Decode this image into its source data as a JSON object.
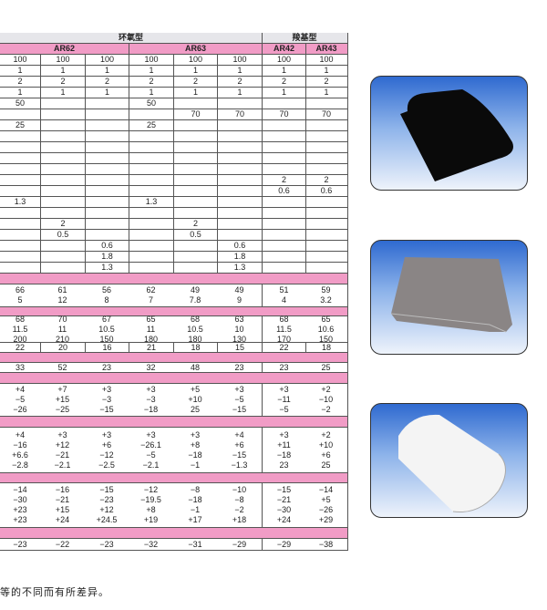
{
  "table": {
    "group_headers": [
      {
        "label": "环氧型",
        "span": 6
      },
      {
        "label": "羧基型",
        "span": 2
      }
    ],
    "model_headers": [
      {
        "label": "AR62",
        "span": 3
      },
      {
        "label": "AR63",
        "span": 3
      },
      {
        "label": "AR42",
        "span": 1
      },
      {
        "label": "AR43",
        "span": 1
      }
    ],
    "rows": [
      {
        "type": "grid",
        "h": 12,
        "cells": [
          "100",
          "100",
          "100",
          "100",
          "100",
          "100",
          "100",
          "100"
        ]
      },
      {
        "type": "grid",
        "h": 12,
        "cells": [
          "1",
          "1",
          "1",
          "1",
          "1",
          "1",
          "1",
          "1"
        ]
      },
      {
        "type": "grid",
        "h": 12,
        "cells": [
          "2",
          "2",
          "2",
          "2",
          "2",
          "2",
          "2",
          "2"
        ]
      },
      {
        "type": "grid",
        "h": 12,
        "cells": [
          "1",
          "1",
          "1",
          "1",
          "1",
          "1",
          "1",
          "1"
        ]
      },
      {
        "type": "grid",
        "h": 12,
        "cells": [
          "50",
          "",
          "",
          "50",
          "",
          "",
          "",
          ""
        ]
      },
      {
        "type": "grid",
        "h": 12,
        "cells": [
          "",
          "",
          "",
          "",
          "70",
          "70",
          "70",
          "70"
        ]
      },
      {
        "type": "grid",
        "h": 12,
        "cells": [
          "25",
          "",
          "",
          "25",
          "",
          "",
          "",
          ""
        ]
      },
      {
        "type": "grid",
        "h": 12,
        "cells": [
          "",
          "",
          "",
          "",
          "",
          "",
          "",
          ""
        ]
      },
      {
        "type": "grid",
        "h": 12,
        "cells": [
          "",
          "",
          "",
          "",
          "",
          "",
          "",
          ""
        ]
      },
      {
        "type": "grid",
        "h": 12,
        "cells": [
          "",
          "",
          "",
          "",
          "",
          "",
          "",
          ""
        ]
      },
      {
        "type": "grid",
        "h": 12,
        "cells": [
          "",
          "",
          "",
          "",
          "",
          "",
          "",
          ""
        ]
      },
      {
        "type": "grid",
        "h": 12,
        "cells": [
          "",
          "",
          "",
          "",
          "",
          "",
          "2",
          "2"
        ]
      },
      {
        "type": "grid",
        "h": 12,
        "cells": [
          "",
          "",
          "",
          "",
          "",
          "",
          "0.6",
          "0.6"
        ]
      },
      {
        "type": "grid",
        "h": 12,
        "cells": [
          "1.3",
          "",
          "",
          "1.3",
          "",
          "",
          "",
          ""
        ]
      },
      {
        "type": "grid",
        "h": 12,
        "cells": [
          "",
          "",
          "",
          "",
          "",
          "",
          "",
          ""
        ]
      },
      {
        "type": "grid",
        "h": 12,
        "cells": [
          "",
          "2",
          "",
          "",
          "2",
          "",
          "",
          ""
        ]
      },
      {
        "type": "grid",
        "h": 12,
        "cells": [
          "",
          "0.5",
          "",
          "",
          "0.5",
          "",
          "",
          ""
        ]
      },
      {
        "type": "grid",
        "h": 12,
        "cells": [
          "",
          "",
          "0.6",
          "",
          "",
          "0.6",
          "",
          ""
        ]
      },
      {
        "type": "grid",
        "h": 12,
        "cells": [
          "",
          "",
          "1.8",
          "",
          "",
          "1.8",
          "",
          ""
        ]
      },
      {
        "type": "grid",
        "h": 12,
        "cells": [
          "",
          "",
          "1.3",
          "",
          "",
          "1.3",
          "",
          ""
        ]
      },
      {
        "type": "pink",
        "h": 12
      },
      {
        "type": "block",
        "h": 25,
        "cells": [
          "66\n5",
          "61\n12",
          "56\n8",
          "62\n7",
          "49\n7.8",
          "49\n9",
          "51\n4",
          "59\n3.2"
        ]
      },
      {
        "type": "pink",
        "h": 10
      },
      {
        "type": "block",
        "h": 29,
        "cells": [
          "68\n11.5\n200",
          "70\n11\n210",
          "67\n10.5\n150",
          "65\n11\n180",
          "68\n10.5\n180",
          "63\n10\n130",
          "68\n11.5\n170",
          "65\n10.6\n150"
        ]
      },
      {
        "type": "grid",
        "h": 11,
        "cells": [
          "22",
          "20",
          "16",
          "21",
          "18",
          "15",
          "22",
          "18"
        ]
      },
      {
        "type": "pink",
        "h": 11
      },
      {
        "type": "block",
        "h": 11,
        "cells": [
          "33",
          "52",
          "23",
          "32",
          "48",
          "23",
          "23",
          "25"
        ]
      },
      {
        "type": "pink",
        "h": 12
      },
      {
        "type": "block",
        "h": 36,
        "cells": [
          "+4\n−5\n−26",
          "+7\n+15\n−25",
          "+3\n−3\n−15",
          "+3\n−3\n−18",
          "+5\n+10\n25",
          "+3\n−5\n−15",
          "+3\n−11\n−5",
          "+2\n−10\n−2"
        ]
      },
      {
        "type": "pink",
        "h": 12
      },
      {
        "type": "block",
        "h": 50,
        "cells": [
          "+4\n−16\n+6.6\n−2.8",
          "+3\n+12\n−21\n−2.1",
          "+3\n+6\n−12\n−2.5",
          "+3\n−26.1\n−5\n−2.1",
          "+3\n+8\n−18\n−1",
          "+4\n+6\n−15\n−1.3",
          "+3\n+11\n−18\n23",
          "+2\n+10\n+6\n25"
        ]
      },
      {
        "type": "pink",
        "h": 11
      },
      {
        "type": "block",
        "h": 49,
        "cells": [
          "−14\n−30\n+23\n+23",
          "−16\n−21\n+15\n+24",
          "−15\n−23\n+12\n+24.5",
          "−12\n−19.5\n+8\n+19",
          "−8\n−18\n−1\n+17",
          "−10\n−8\n−2\n+18",
          "−15\n−21\n−30\n+24",
          "−14\n+5\n−26\n+29"
        ]
      },
      {
        "type": "pink",
        "h": 12
      },
      {
        "type": "block",
        "h": 13,
        "cells": [
          "−23",
          "−22",
          "−23",
          "−32",
          "−31",
          "−29",
          "−29",
          "−38"
        ]
      }
    ]
  },
  "note": "等的不同而有所差异。",
  "photos": [
    {
      "name": "black-felt-photo",
      "color": "#0a0a0a"
    },
    {
      "name": "gray-felt-photo",
      "color": "#8a8585"
    },
    {
      "name": "white-filter-bag-photo",
      "color": "#f2f2f2"
    }
  ]
}
